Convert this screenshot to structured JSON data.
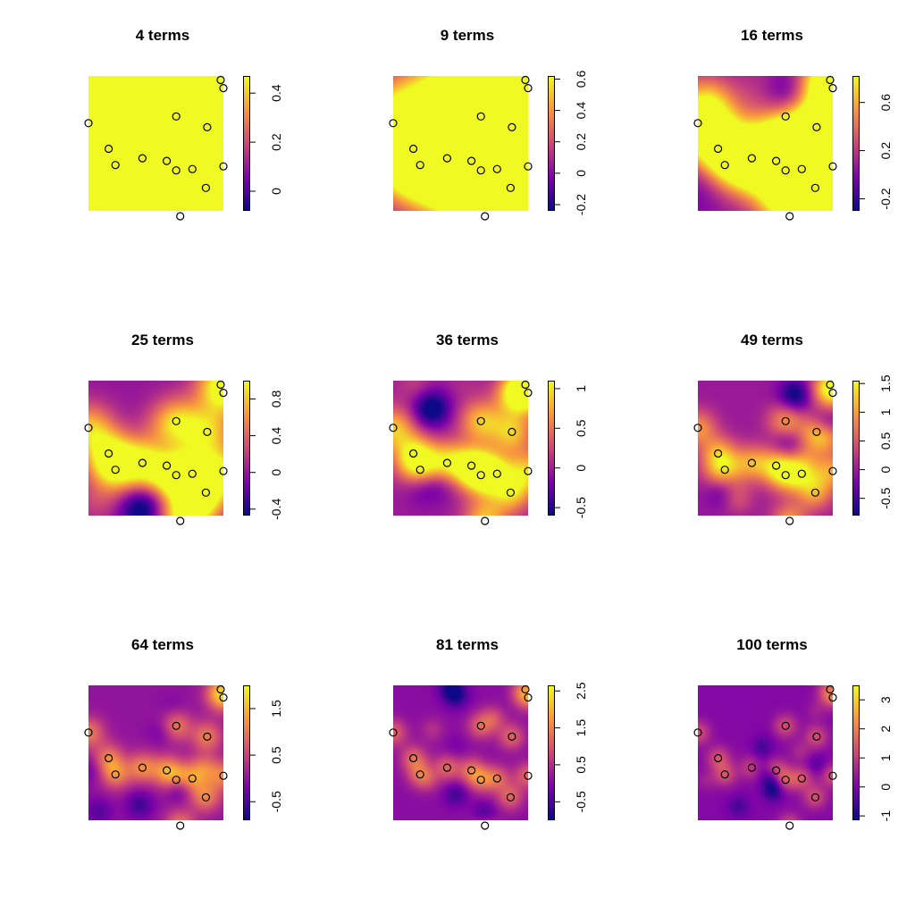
{
  "figure": {
    "panels": [
      {
        "title": "4 terms",
        "ticks": [
          "0",
          "0.2",
          "0.4"
        ],
        "tick_values": [
          0,
          0.2,
          0.4
        ],
        "zlim": [
          -0.08,
          0.47
        ],
        "length_scale": 0.32,
        "amplitude": 0.55,
        "seed": 4
      },
      {
        "title": "9 terms",
        "ticks": [
          "-0.2",
          "0",
          "0.2",
          "0.4",
          "0.6"
        ],
        "tick_values": [
          -0.2,
          0,
          0.2,
          0.4,
          0.6
        ],
        "zlim": [
          -0.24,
          0.62
        ],
        "length_scale": 0.22,
        "amplitude": 0.6,
        "seed": 9
      },
      {
        "title": "16 terms",
        "ticks": [
          "-0.2",
          "0.2",
          "0.6"
        ],
        "tick_values": [
          -0.2,
          0.2,
          0.6
        ],
        "zlim": [
          -0.3,
          0.82
        ],
        "length_scale": 0.17,
        "amplitude": 0.7,
        "seed": 16
      },
      {
        "title": "25 terms",
        "ticks": [
          "-0.4",
          "0",
          "0.4",
          "0.8"
        ],
        "tick_values": [
          -0.4,
          0,
          0.4,
          0.8
        ],
        "zlim": [
          -0.47,
          1.0
        ],
        "length_scale": 0.13,
        "amplitude": 0.8,
        "seed": 25
      },
      {
        "title": "36 terms",
        "ticks": [
          "-0.5",
          "0",
          "0.5",
          "1"
        ],
        "tick_values": [
          -0.5,
          0,
          0.5,
          1
        ],
        "zlim": [
          -0.6,
          1.1
        ],
        "length_scale": 0.11,
        "amplitude": 0.9,
        "seed": 36
      },
      {
        "title": "49 terms",
        "ticks": [
          "-0.5",
          "0",
          "0.5",
          "1",
          "1.5"
        ],
        "tick_values": [
          -0.5,
          0,
          0.5,
          1,
          1.5
        ],
        "zlim": [
          -0.8,
          1.55
        ],
        "length_scale": 0.095,
        "amplitude": 1.0,
        "seed": 49
      },
      {
        "title": "64 terms",
        "ticks": [
          "-0.5",
          "0.5",
          "1.5"
        ],
        "tick_values": [
          -0.5,
          0.5,
          1.5
        ],
        "zlim": [
          -0.9,
          2.0
        ],
        "length_scale": 0.08,
        "amplitude": 1.1,
        "seed": 64
      },
      {
        "title": "81 terms",
        "ticks": [
          "-0.5",
          "0.5",
          "1.5",
          "2.5"
        ],
        "tick_values": [
          -0.5,
          0.5,
          1.5,
          2.5
        ],
        "zlim": [
          -1.0,
          2.65
        ],
        "length_scale": 0.07,
        "amplitude": 1.2,
        "seed": 81
      },
      {
        "title": "100 terms",
        "ticks": [
          "-1",
          "0",
          "1",
          "2",
          "3"
        ],
        "tick_values": [
          -1,
          0,
          1,
          2,
          3
        ],
        "zlim": [
          -1.15,
          3.5
        ],
        "length_scale": 0.062,
        "amplitude": 1.3,
        "seed": 100
      }
    ]
  },
  "chart_data": {
    "type": "heatmap",
    "colormap": [
      "#0d0887",
      "#7e03a8",
      "#cc4778",
      "#f89540",
      "#f0f921"
    ],
    "marker_style": "open-circle",
    "points": {
      "x": [
        0.0,
        0.15,
        0.2,
        0.4,
        0.58,
        0.65,
        0.68,
        0.77,
        0.88,
        0.98,
        1.0,
        0.65,
        0.87,
        1.0
      ],
      "y": [
        0.65,
        0.46,
        0.34,
        0.39,
        0.37,
        0.7,
        -0.04,
        0.31,
        0.62,
        0.97,
        0.91,
        0.3,
        0.17,
        0.33
      ]
    },
    "series": [
      {
        "name": "4 terms",
        "zlim": [
          -0.08,
          0.47
        ]
      },
      {
        "name": "9 terms",
        "zlim": [
          -0.24,
          0.62
        ]
      },
      {
        "name": "16 terms",
        "zlim": [
          -0.3,
          0.82
        ]
      },
      {
        "name": "25 terms",
        "zlim": [
          -0.47,
          1.0
        ]
      },
      {
        "name": "36 terms",
        "zlim": [
          -0.6,
          1.1
        ]
      },
      {
        "name": "49 terms",
        "zlim": [
          -0.8,
          1.55
        ]
      },
      {
        "name": "64 terms",
        "zlim": [
          -0.9,
          2.0
        ]
      },
      {
        "name": "81 terms",
        "zlim": [
          -1.0,
          2.65
        ]
      },
      {
        "name": "100 terms",
        "zlim": [
          -1.15,
          3.5
        ]
      }
    ]
  }
}
